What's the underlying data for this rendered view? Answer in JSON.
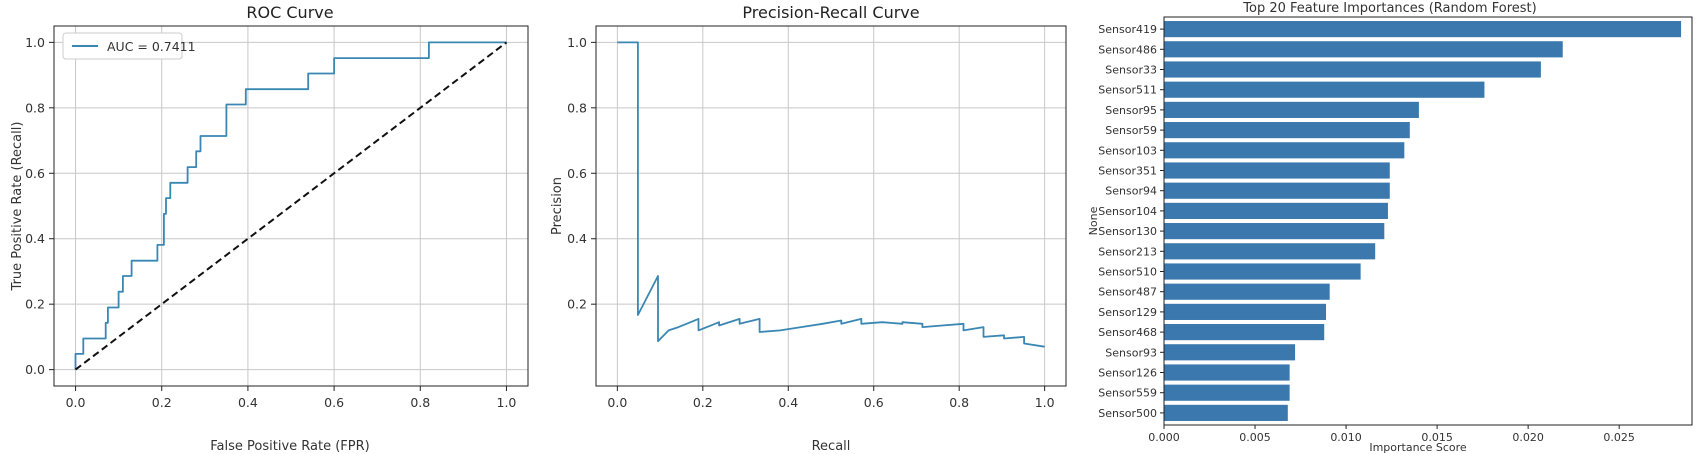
{
  "chart_data": [
    {
      "type": "line",
      "title": "ROC Curve",
      "xlabel": "False Positive Rate (FPR)",
      "ylabel": "True Positive Rate (Recall)",
      "xlim": [
        0,
        1
      ],
      "ylim": [
        0,
        1
      ],
      "xticks": [
        "0.0",
        "0.2",
        "0.4",
        "0.6",
        "0.8",
        "1.0"
      ],
      "yticks": [
        "0.0",
        "0.2",
        "0.4",
        "0.6",
        "0.8",
        "1.0"
      ],
      "grid": true,
      "legend_position": "top-left",
      "accent_color": "#3a87b4",
      "series": [
        {
          "name": "AUC = 0.7411",
          "color": "#3a87b4",
          "x": [
            0.0,
            0.0,
            0.018,
            0.018,
            0.07,
            0.07,
            0.075,
            0.075,
            0.1,
            0.1,
            0.11,
            0.11,
            0.12,
            0.12,
            0.13,
            0.13,
            0.19,
            0.19,
            0.205,
            0.205,
            0.21,
            0.21,
            0.22,
            0.22,
            0.23,
            0.23,
            0.26,
            0.26,
            0.28,
            0.28,
            0.29,
            0.29,
            0.31,
            0.31,
            0.35,
            0.35,
            0.395,
            0.395,
            0.54,
            0.54,
            0.6,
            0.6,
            0.82,
            0.82,
            1.0
          ],
          "y": [
            0.0,
            0.048,
            0.048,
            0.095,
            0.095,
            0.143,
            0.143,
            0.19,
            0.19,
            0.238,
            0.238,
            0.286,
            0.286,
            0.286,
            0.286,
            0.333,
            0.333,
            0.381,
            0.381,
            0.476,
            0.476,
            0.524,
            0.524,
            0.571,
            0.571,
            0.571,
            0.571,
            0.619,
            0.619,
            0.667,
            0.667,
            0.714,
            0.714,
            0.714,
            0.714,
            0.81,
            0.81,
            0.857,
            0.857,
            0.905,
            0.905,
            0.952,
            0.952,
            1.0,
            1.0
          ]
        },
        {
          "name": "",
          "style": "dashed",
          "color": "#111111",
          "x": [
            0,
            1
          ],
          "y": [
            0,
            1
          ]
        }
      ]
    },
    {
      "type": "line",
      "title": "Precision-Recall Curve",
      "xlabel": "Recall",
      "ylabel": "Precision",
      "xlim": [
        0,
        1
      ],
      "ylim": [
        0,
        1
      ],
      "xticks": [
        "0.0",
        "0.2",
        "0.4",
        "0.6",
        "0.8",
        "1.0"
      ],
      "yticks": [
        "0.2",
        "0.4",
        "0.6",
        "0.8",
        "1.0"
      ],
      "grid": true,
      "series": [
        {
          "name": "",
          "color": "#3a87b4",
          "x": [
            0.0,
            0.048,
            0.048,
            0.095,
            0.095,
            0.12,
            0.143,
            0.19,
            0.19,
            0.238,
            0.238,
            0.286,
            0.286,
            0.333,
            0.333,
            0.381,
            0.43,
            0.48,
            0.524,
            0.524,
            0.571,
            0.571,
            0.62,
            0.667,
            0.667,
            0.714,
            0.714,
            0.76,
            0.81,
            0.81,
            0.857,
            0.857,
            0.905,
            0.905,
            0.952,
            0.952,
            1.0
          ],
          "y": [
            1.0,
            1.0,
            0.167,
            0.286,
            0.087,
            0.12,
            0.13,
            0.155,
            0.12,
            0.145,
            0.135,
            0.155,
            0.14,
            0.155,
            0.115,
            0.12,
            0.13,
            0.14,
            0.15,
            0.14,
            0.155,
            0.14,
            0.145,
            0.14,
            0.145,
            0.14,
            0.13,
            0.135,
            0.14,
            0.12,
            0.13,
            0.1,
            0.105,
            0.095,
            0.1,
            0.08,
            0.07
          ]
        }
      ]
    },
    {
      "type": "bar",
      "orientation": "horizontal",
      "title": "Top 20 Feature Importances (Random Forest)",
      "xlabel": "Importance Score",
      "ylabel": "None",
      "xlim": [
        0,
        0.029
      ],
      "xticks": [
        "0.000",
        "0.005",
        "0.010",
        "0.015",
        "0.020",
        "0.025"
      ],
      "color": "#3a78ad",
      "categories": [
        "Sensor419",
        "Sensor486",
        "Sensor33",
        "Sensor511",
        "Sensor95",
        "Sensor59",
        "Sensor103",
        "Sensor351",
        "Sensor94",
        "Sensor104",
        "Sensor130",
        "Sensor213",
        "Sensor510",
        "Sensor487",
        "Sensor129",
        "Sensor468",
        "Sensor93",
        "Sensor126",
        "Sensor559",
        "Sensor500"
      ],
      "values": [
        0.0284,
        0.0219,
        0.0207,
        0.0176,
        0.014,
        0.0135,
        0.0132,
        0.0124,
        0.0124,
        0.0123,
        0.0121,
        0.0116,
        0.0108,
        0.0091,
        0.0089,
        0.0088,
        0.0072,
        0.0069,
        0.0069,
        0.0068
      ]
    }
  ]
}
